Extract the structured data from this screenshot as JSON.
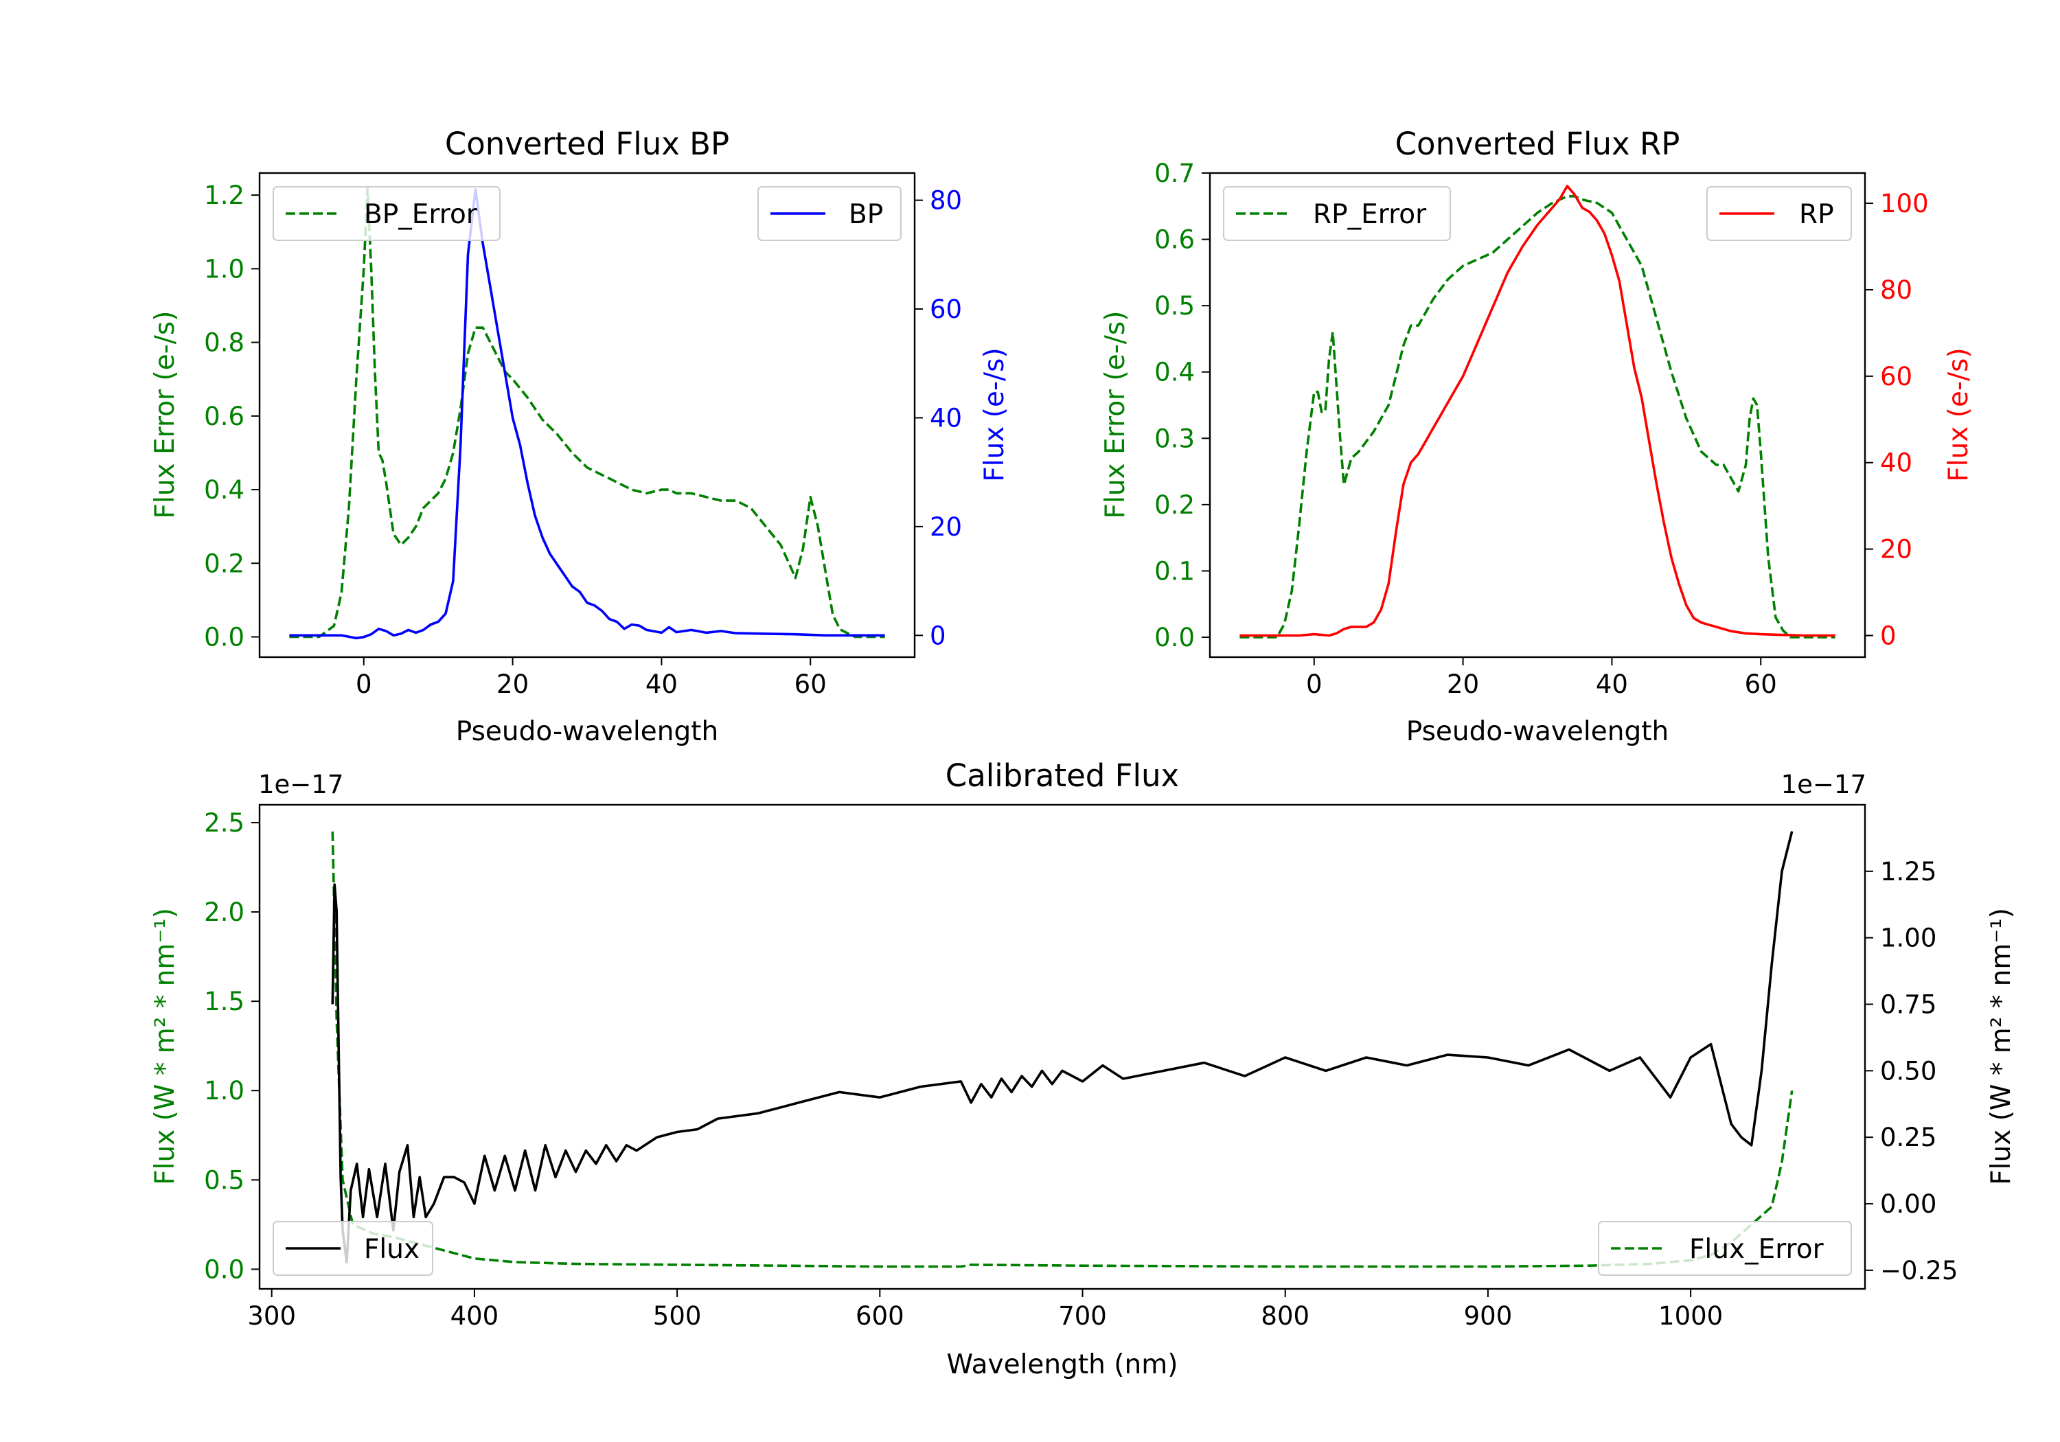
{
  "chart_data": [
    {
      "id": "bp",
      "type": "line",
      "title": "Converted Flux BP",
      "xlabel": "Pseudo-wavelength",
      "xlim": [
        -14,
        74
      ],
      "xticks": [
        0,
        20,
        40,
        60
      ],
      "y_left": {
        "label": "Flux Error (e-/s)",
        "color": "#008000",
        "lim": [
          -0.055,
          1.26
        ],
        "ticks": [
          "0.0",
          "0.2",
          "0.4",
          "0.6",
          "0.8",
          "1.0",
          "1.2"
        ],
        "tick_values": [
          0.0,
          0.2,
          0.4,
          0.6,
          0.8,
          1.0,
          1.2
        ]
      },
      "y_right": {
        "label": "Flux (e-/s)",
        "color": "#0000ff",
        "lim": [
          -4,
          85
        ],
        "ticks": [
          "0",
          "20",
          "40",
          "60",
          "80"
        ],
        "tick_values": [
          0,
          20,
          40,
          60,
          80
        ]
      },
      "series": [
        {
          "name": "BP_Error",
          "axis": "left",
          "color": "#008000",
          "dash": true,
          "x": [
            -10,
            -6,
            -4,
            -3,
            -2,
            -1,
            0,
            0.5,
            1,
            1.5,
            2,
            2.5,
            3,
            4,
            5,
            6,
            7,
            8,
            9,
            10,
            11,
            12,
            13,
            14,
            15,
            16,
            17,
            18,
            19,
            20,
            22,
            24,
            26,
            28,
            30,
            32,
            34,
            36,
            38,
            40,
            41,
            42,
            44,
            46,
            48,
            50,
            52,
            54,
            56,
            58,
            59,
            60,
            61,
            62,
            63,
            64,
            66,
            70
          ],
          "y": [
            0.0,
            0.0,
            0.03,
            0.12,
            0.35,
            0.7,
            1.0,
            1.22,
            1.0,
            0.72,
            0.5,
            0.48,
            0.42,
            0.28,
            0.25,
            0.27,
            0.3,
            0.35,
            0.37,
            0.39,
            0.43,
            0.5,
            0.62,
            0.77,
            0.84,
            0.84,
            0.8,
            0.76,
            0.72,
            0.7,
            0.65,
            0.59,
            0.55,
            0.5,
            0.46,
            0.44,
            0.42,
            0.4,
            0.39,
            0.4,
            0.4,
            0.39,
            0.39,
            0.38,
            0.37,
            0.37,
            0.35,
            0.3,
            0.25,
            0.16,
            0.24,
            0.38,
            0.3,
            0.18,
            0.06,
            0.02,
            0.0,
            0.0
          ]
        },
        {
          "name": "BP",
          "axis": "right",
          "color": "#0000ff",
          "dash": false,
          "x": [
            -10,
            -6,
            -3,
            -1,
            0,
            1,
            2,
            3,
            4,
            5,
            6,
            7,
            8,
            9,
            10,
            11,
            12,
            13,
            14,
            15,
            16,
            17,
            18,
            19,
            20,
            21,
            22,
            23,
            24,
            25,
            26,
            27,
            28,
            29,
            30,
            31,
            32,
            33,
            34,
            35,
            36,
            37,
            38,
            40,
            41,
            42,
            44,
            46,
            48,
            50,
            54,
            58,
            62,
            66,
            70
          ],
          "y": [
            0,
            0,
            0,
            -0.5,
            -0.3,
            0.2,
            1.2,
            0.8,
            0,
            0.3,
            1,
            0.5,
            1,
            2,
            2.5,
            4,
            10,
            35,
            70,
            82,
            72,
            64,
            56,
            48,
            40,
            35,
            28,
            22,
            18,
            15,
            13,
            11,
            9,
            8,
            6,
            5.5,
            4.5,
            3,
            2.5,
            1.2,
            2,
            1.8,
            1,
            0.5,
            1.5,
            0.6,
            1,
            0.5,
            0.8,
            0.4,
            0.3,
            0.2,
            0,
            0,
            0
          ]
        }
      ],
      "legend": [
        {
          "label": "BP_Error",
          "placement": "upper-left"
        },
        {
          "label": "BP",
          "placement": "upper-right"
        }
      ]
    },
    {
      "id": "rp",
      "type": "line",
      "title": "Converted Flux RP",
      "xlabel": "Pseudo-wavelength",
      "xlim": [
        -14,
        74
      ],
      "xticks": [
        0,
        20,
        40,
        60
      ],
      "y_left": {
        "label": "Flux Error (e-/s)",
        "color": "#008000",
        "lim": [
          -0.03,
          0.7
        ],
        "ticks": [
          "0.0",
          "0.1",
          "0.2",
          "0.3",
          "0.4",
          "0.5",
          "0.6",
          "0.7"
        ],
        "tick_values": [
          0.0,
          0.1,
          0.2,
          0.3,
          0.4,
          0.5,
          0.6,
          0.7
        ]
      },
      "y_right": {
        "label": "Flux (e-/s)",
        "color": "#ff0000",
        "lim": [
          -5,
          107
        ],
        "ticks": [
          "0",
          "20",
          "40",
          "60",
          "80",
          "100"
        ],
        "tick_values": [
          0,
          20,
          40,
          60,
          80,
          100
        ]
      },
      "series": [
        {
          "name": "RP_Error",
          "axis": "left",
          "color": "#008000",
          "dash": true,
          "x": [
            -10,
            -5,
            -4,
            -3,
            -2,
            -1,
            0,
            0.5,
            1,
            1.5,
            2,
            2.5,
            3,
            3.5,
            4,
            5,
            6,
            8,
            10,
            12,
            13,
            14,
            16,
            18,
            20,
            22,
            24,
            26,
            28,
            30,
            32,
            34,
            35,
            36,
            38,
            40,
            42,
            44,
            46,
            48,
            50,
            52,
            54,
            55,
            56,
            57,
            58,
            58.5,
            59,
            59.5,
            60,
            61,
            62,
            63,
            64,
            66,
            70
          ],
          "y": [
            0.0,
            0.0,
            0.02,
            0.07,
            0.17,
            0.28,
            0.37,
            0.37,
            0.34,
            0.34,
            0.42,
            0.46,
            0.38,
            0.3,
            0.23,
            0.27,
            0.28,
            0.31,
            0.35,
            0.44,
            0.47,
            0.47,
            0.51,
            0.54,
            0.56,
            0.57,
            0.58,
            0.6,
            0.62,
            0.64,
            0.655,
            0.665,
            0.665,
            0.66,
            0.655,
            0.64,
            0.6,
            0.56,
            0.48,
            0.4,
            0.33,
            0.28,
            0.26,
            0.26,
            0.24,
            0.22,
            0.26,
            0.33,
            0.36,
            0.35,
            0.28,
            0.12,
            0.03,
            0.01,
            0.0,
            0.0,
            0.0
          ]
        },
        {
          "name": "RP",
          "axis": "right",
          "color": "#ff0000",
          "dash": false,
          "x": [
            -10,
            -2,
            0,
            2,
            3,
            4,
            5,
            7,
            8,
            9,
            10,
            11,
            12,
            13,
            14,
            15,
            16,
            17,
            18,
            20,
            22,
            24,
            26,
            28,
            30,
            32,
            33,
            34,
            35,
            36,
            37,
            38,
            39,
            40,
            41,
            42,
            43,
            44,
            45,
            46,
            47,
            48,
            49,
            50,
            51,
            52,
            53,
            54,
            56,
            58,
            60,
            62,
            66,
            70
          ],
          "y": [
            0,
            0,
            0.3,
            0,
            0.5,
            1.5,
            2,
            2,
            3,
            6,
            12,
            24,
            35,
            40,
            42,
            45,
            48,
            51,
            54,
            60,
            68,
            76,
            84,
            90,
            95,
            99,
            101,
            104,
            102,
            99,
            98,
            96,
            93,
            88,
            82,
            72,
            62,
            55,
            45,
            35,
            26,
            18,
            12,
            7,
            4,
            3,
            2.5,
            2,
            1,
            0.5,
            0.3,
            0.2,
            0,
            0
          ]
        }
      ],
      "legend": [
        {
          "label": "RP_Error",
          "placement": "upper-left"
        },
        {
          "label": "RP",
          "placement": "upper-right"
        }
      ]
    },
    {
      "id": "cal",
      "type": "line",
      "title": "Calibrated Flux",
      "xlabel": "Wavelength (nm)",
      "xlim": [
        294,
        1086
      ],
      "xticks": [
        300,
        400,
        500,
        600,
        700,
        800,
        900,
        1000
      ],
      "y_left": {
        "label": "Flux (W * m² * nm⁻¹)",
        "color": "#008000",
        "offset": "1e−17",
        "lim": [
          -0.11,
          2.6
        ],
        "ticks": [
          "0.0",
          "0.5",
          "1.0",
          "1.5",
          "2.0",
          "2.5"
        ],
        "tick_values": [
          0.0,
          0.5,
          1.0,
          1.5,
          2.0,
          2.5
        ]
      },
      "y_right": {
        "label": "Flux (W * m² * nm⁻¹)",
        "color": "#000000",
        "offset": "1e−17",
        "lim": [
          -0.32,
          1.5
        ],
        "ticks": [
          "−0.25",
          "0.00",
          "0.25",
          "0.50",
          "0.75",
          "1.00",
          "1.25"
        ],
        "tick_values": [
          -0.25,
          0.0,
          0.25,
          0.5,
          0.75,
          1.0,
          1.25
        ]
      },
      "series": [
        {
          "name": "Flux_Error",
          "axis": "left",
          "color": "#008000",
          "dash": true,
          "x": [
            330,
            332,
            335,
            340,
            350,
            360,
            380,
            400,
            420,
            450,
            500,
            550,
            600,
            640,
            645,
            700,
            800,
            900,
            950,
            980,
            1000,
            1010,
            1020,
            1030,
            1040,
            1045,
            1050
          ],
          "y": [
            2.45,
            1.4,
            0.5,
            0.25,
            0.2,
            0.18,
            0.12,
            0.06,
            0.04,
            0.03,
            0.025,
            0.02,
            0.015,
            0.015,
            0.025,
            0.02,
            0.015,
            0.015,
            0.02,
            0.03,
            0.05,
            0.08,
            0.15,
            0.25,
            0.35,
            0.6,
            1.0
          ]
        },
        {
          "name": "Flux",
          "axis": "right",
          "color": "#000000",
          "dash": false,
          "x": [
            330,
            331,
            332,
            333,
            334,
            335,
            337,
            339,
            342,
            345,
            348,
            352,
            356,
            360,
            363,
            367,
            370,
            373,
            376,
            380,
            385,
            390,
            395,
            400,
            405,
            410,
            415,
            420,
            425,
            430,
            435,
            440,
            445,
            450,
            455,
            460,
            465,
            470,
            475,
            480,
            490,
            500,
            510,
            520,
            540,
            560,
            580,
            600,
            620,
            640,
            645,
            650,
            655,
            660,
            665,
            670,
            675,
            680,
            685,
            690,
            700,
            710,
            720,
            740,
            760,
            780,
            800,
            820,
            840,
            860,
            880,
            900,
            920,
            940,
            960,
            975,
            990,
            1000,
            1010,
            1015,
            1020,
            1025,
            1030,
            1035,
            1040,
            1045,
            1050
          ],
          "y": [
            0.75,
            1.2,
            1.1,
            0.6,
            0.1,
            -0.1,
            -0.22,
            0.05,
            0.15,
            -0.05,
            0.13,
            -0.05,
            0.15,
            -0.1,
            0.12,
            0.22,
            -0.05,
            0.1,
            -0.05,
            0.0,
            0.1,
            0.1,
            0.08,
            0.0,
            0.18,
            0.05,
            0.18,
            0.05,
            0.2,
            0.05,
            0.22,
            0.1,
            0.2,
            0.12,
            0.2,
            0.15,
            0.22,
            0.16,
            0.22,
            0.2,
            0.25,
            0.27,
            0.28,
            0.32,
            0.34,
            0.38,
            0.42,
            0.4,
            0.44,
            0.46,
            0.38,
            0.45,
            0.4,
            0.47,
            0.42,
            0.48,
            0.44,
            0.5,
            0.45,
            0.5,
            0.46,
            0.52,
            0.47,
            0.5,
            0.53,
            0.48,
            0.55,
            0.5,
            0.55,
            0.52,
            0.56,
            0.55,
            0.52,
            0.58,
            0.5,
            0.55,
            0.4,
            0.55,
            0.6,
            0.45,
            0.3,
            0.25,
            0.22,
            0.5,
            0.9,
            1.25,
            1.4
          ]
        }
      ],
      "legend": [
        {
          "label": "Flux",
          "placement": "lower-left"
        },
        {
          "label": "Flux_Error",
          "placement": "lower-right"
        }
      ]
    }
  ]
}
